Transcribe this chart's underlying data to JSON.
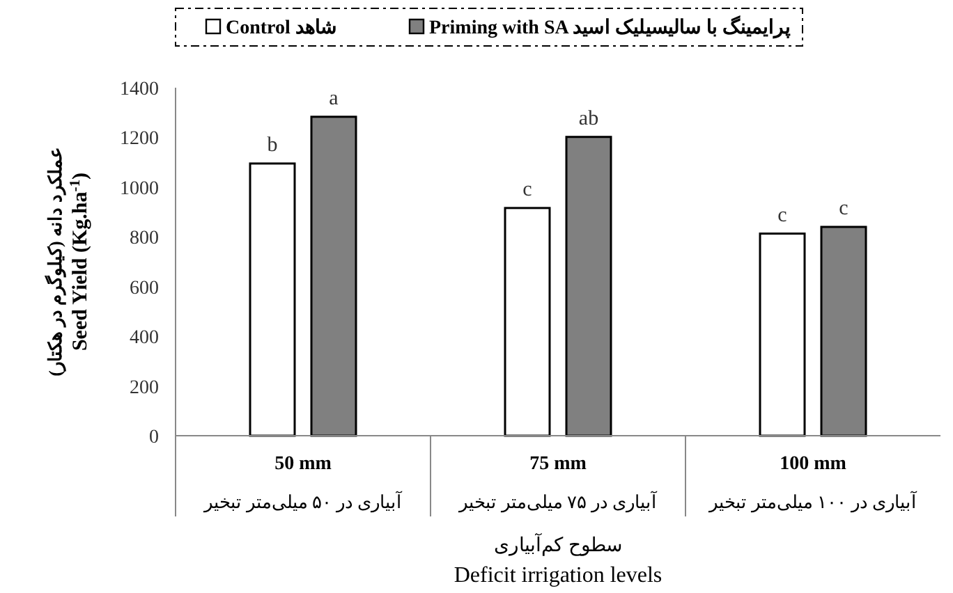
{
  "chart_data": {
    "type": "bar",
    "xlabel": "سطوح کم‌آبیاری\nDeficit irrigation levels",
    "ylabel": "عملکرد دانه (کیلوگرم در هکتار)\nSeed Yield (Kg.ha$^{-1}$)",
    "categories": [
      "50 mm\nآبیاری در ۵۰ میلی‌متر تبخیر",
      "75 mm\nآبیاری در ۷۵ میلی‌متر تبخیر",
      "100 mm\nآبیاری در ۱۰۰ میلی‌متر تبخیر"
    ],
    "series": [
      {
        "name": "Control شاهد",
        "color": "#ffffff",
        "values": [
          1095,
          916,
          813
        ],
        "value_labels": [
          "b",
          "c",
          "c"
        ]
      },
      {
        "name": "Priming with SA  پرایمینگ با سالیسیلیک اسید",
        "color": "#808080",
        "values": [
          1283,
          1202,
          840
        ],
        "value_labels": [
          "a",
          "ab",
          "c"
        ]
      }
    ],
    "ylim": [
      0,
      1400
    ],
    "yticks": [
      0,
      200,
      400,
      600,
      800,
      1000,
      1200,
      1400
    ],
    "grid": false,
    "legend": "top"
  }
}
